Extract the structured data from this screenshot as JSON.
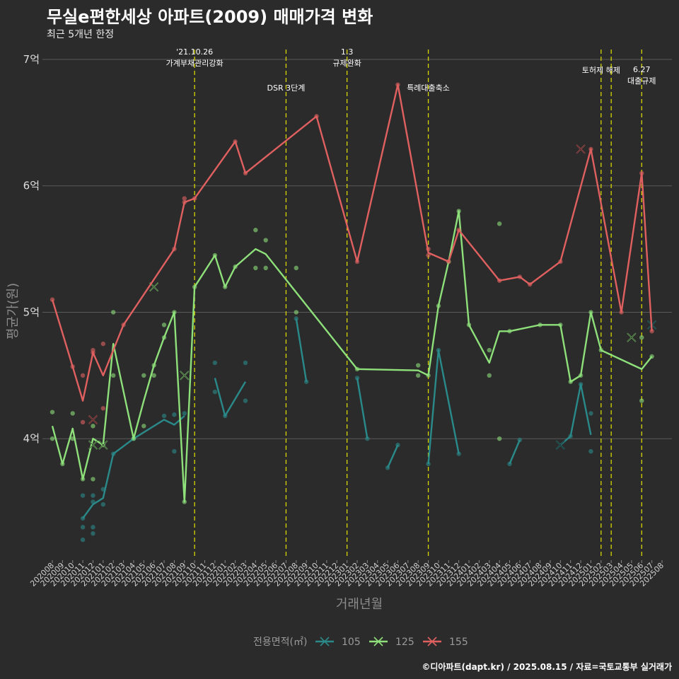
{
  "header": {
    "title": "무실e편한세상 아파트(2009) 매매가격 변화",
    "subtitle": "최근 5개년 한정"
  },
  "caption": "©디아파트(dapt.kr) / 2025.08.15 / 자료=국토교통부 실거래가",
  "colors": {
    "background": "#2b2b2b",
    "grid": "#5a5a5a",
    "vline": "#d6d600",
    "series_105": "#2a8a8a",
    "series_125": "#8ee07a",
    "series_155": "#e06060"
  },
  "chart_data": {
    "type": "line",
    "xlabel": "거래년월",
    "ylabel": "평균가(원)",
    "ylim": [
      3.05,
      7.05
    ],
    "y_ticks": [
      {
        "value": 4,
        "label": "4억"
      },
      {
        "value": 5,
        "label": "5억"
      },
      {
        "value": 6,
        "label": "6억"
      },
      {
        "value": 7,
        "label": "7억"
      }
    ],
    "x_categories": [
      "202008",
      "202009",
      "202010",
      "202011",
      "202012",
      "202101",
      "202102",
      "202103",
      "202104",
      "202105",
      "202106",
      "202107",
      "202108",
      "202109",
      "202110",
      "202111",
      "202112",
      "202201",
      "202202",
      "202203",
      "202204",
      "202205",
      "202206",
      "202207",
      "202208",
      "202209",
      "202210",
      "202211",
      "202212",
      "202301",
      "202302",
      "202303",
      "202304",
      "202305",
      "202306",
      "202307",
      "202308",
      "202309",
      "202310",
      "202311",
      "202312",
      "202401",
      "202402",
      "202403",
      "202404",
      "202405",
      "202406",
      "202407",
      "202408",
      "202409",
      "202410",
      "202411",
      "202412",
      "202501",
      "202502",
      "202503",
      "202504",
      "202505",
      "202506",
      "202507",
      "202508"
    ],
    "legend": {
      "title": "전용면적(㎡)",
      "position": "bottom"
    },
    "series": [
      {
        "name": "105",
        "color": "#2a8a8a",
        "segments": [
          [
            [
              "202011",
              3.37
            ],
            [
              "202012",
              3.48
            ],
            [
              "202101",
              3.53
            ],
            [
              "202102",
              3.88
            ],
            [
              "202104",
              4.0
            ],
            [
              "202107",
              4.15
            ],
            [
              "202108",
              4.11
            ],
            [
              "202109",
              4.18
            ]
          ],
          [
            [
              "202112",
              4.48
            ],
            [
              "202201",
              4.18
            ],
            [
              "202203",
              4.45
            ]
          ],
          [
            [
              "202208",
              4.95
            ],
            [
              "202209",
              4.45
            ]
          ],
          [
            [
              "202302",
              4.48
            ],
            [
              "202303",
              4.0
            ]
          ],
          [
            [
              "202305",
              3.77
            ],
            [
              "202306",
              3.95
            ]
          ],
          [
            [
              "202309",
              3.8
            ],
            [
              "202310",
              4.7
            ],
            [
              "202312",
              3.88
            ]
          ],
          [
            [
              "202405",
              3.8
            ],
            [
              "202406",
              3.99
            ]
          ],
          [
            [
              "202410",
              3.95
            ],
            [
              "202411",
              4.02
            ],
            [
              "202412",
              4.43
            ],
            [
              "202501",
              4.03
            ]
          ]
        ],
        "points": [
          [
            "202011",
            3.37
          ],
          [
            "202011",
            3.3
          ],
          [
            "202011",
            3.55
          ],
          [
            "202011",
            3.2
          ],
          [
            "202012",
            3.55
          ],
          [
            "202012",
            3.25
          ],
          [
            "202012",
            3.3
          ],
          [
            "202012",
            3.5
          ],
          [
            "202101",
            3.48
          ],
          [
            "202101",
            3.6
          ],
          [
            "202102",
            3.88
          ],
          [
            "202104",
            4.0
          ],
          [
            "202107",
            4.18
          ],
          [
            "202108",
            4.19
          ],
          [
            "202108",
            3.9
          ],
          [
            "202109",
            4.2
          ],
          [
            "202112",
            4.6
          ],
          [
            "202112",
            4.37
          ],
          [
            "202201",
            4.18
          ],
          [
            "202203",
            4.6
          ],
          [
            "202203",
            4.3
          ],
          [
            "202208",
            4.95
          ],
          [
            "202209",
            4.45
          ],
          [
            "202302",
            4.48
          ],
          [
            "202303",
            4.0
          ],
          [
            "202305",
            3.77
          ],
          [
            "202306",
            3.95
          ],
          [
            "202309",
            3.8
          ],
          [
            "202310",
            4.7
          ],
          [
            "202312",
            3.88
          ],
          [
            "202405",
            3.8
          ],
          [
            "202406",
            3.99
          ],
          [
            "202411",
            4.02
          ],
          [
            "202412",
            4.43
          ],
          [
            "202501",
            4.2
          ],
          [
            "202501",
            3.9
          ]
        ],
        "cancelled": [
          [
            "202410",
            3.95
          ],
          [
            "202507",
            4.9
          ]
        ]
      },
      {
        "name": "125",
        "color": "#8ee07a",
        "segments": [
          [
            [
              "202008",
              4.1
            ],
            [
              "202009",
              3.8
            ],
            [
              "202010",
              4.08
            ],
            [
              "202011",
              3.68
            ],
            [
              "202012",
              4.0
            ],
            [
              "202101",
              3.95
            ],
            [
              "202102",
              4.75
            ],
            [
              "202104",
              4.0
            ],
            [
              "202105",
              4.3
            ],
            [
              "202106",
              4.58
            ],
            [
              "202107",
              4.8
            ],
            [
              "202108",
              5.0
            ],
            [
              "202109",
              3.5
            ],
            [
              "202110",
              5.2
            ],
            [
              "202112",
              5.45
            ],
            [
              "202201",
              5.2
            ],
            [
              "202202",
              5.36
            ],
            [
              "202204",
              5.5
            ],
            [
              "202205",
              5.46
            ],
            [
              "202302",
              4.55
            ],
            [
              "202308",
              4.54
            ],
            [
              "202309",
              4.5
            ],
            [
              "202310",
              5.05
            ],
            [
              "202311",
              5.4
            ],
            [
              "202312",
              5.8
            ],
            [
              "202401",
              4.9
            ],
            [
              "202403",
              4.6
            ],
            [
              "202404",
              4.85
            ],
            [
              "202405",
              4.85
            ],
            [
              "202408",
              4.9
            ],
            [
              "202410",
              4.9
            ],
            [
              "202411",
              4.45
            ],
            [
              "202412",
              4.5
            ],
            [
              "202501",
              5.0
            ],
            [
              "202502",
              4.7
            ],
            [
              "202506",
              4.55
            ],
            [
              "202507",
              4.65
            ]
          ]
        ],
        "points": [
          [
            "202008",
            4.21
          ],
          [
            "202008",
            4.0
          ],
          [
            "202009",
            3.8
          ],
          [
            "202010",
            4.2
          ],
          [
            "202010",
            4.0
          ],
          [
            "202011",
            3.68
          ],
          [
            "202012",
            3.68
          ],
          [
            "202012",
            4.1
          ],
          [
            "202101",
            3.95
          ],
          [
            "202102",
            5.0
          ],
          [
            "202102",
            4.5
          ],
          [
            "202104",
            4.0
          ],
          [
            "202105",
            4.1
          ],
          [
            "202105",
            4.5
          ],
          [
            "202106",
            4.58
          ],
          [
            "202106",
            4.5
          ],
          [
            "202107",
            4.8
          ],
          [
            "202107",
            4.9
          ],
          [
            "202108",
            5.0
          ],
          [
            "202109",
            3.5
          ],
          [
            "202110",
            5.2
          ],
          [
            "202112",
            5.45
          ],
          [
            "202201",
            5.2
          ],
          [
            "202202",
            5.36
          ],
          [
            "202204",
            5.35
          ],
          [
            "202204",
            5.65
          ],
          [
            "202205",
            5.35
          ],
          [
            "202205",
            5.57
          ],
          [
            "202208",
            5.35
          ],
          [
            "202208",
            5.0
          ],
          [
            "202302",
            4.55
          ],
          [
            "202308",
            4.58
          ],
          [
            "202308",
            4.5
          ],
          [
            "202309",
            4.5
          ],
          [
            "202310",
            5.05
          ],
          [
            "202311",
            5.4
          ],
          [
            "202312",
            5.8
          ],
          [
            "202401",
            4.9
          ],
          [
            "202403",
            4.7
          ],
          [
            "202403",
            4.5
          ],
          [
            "202404",
            5.7
          ],
          [
            "202404",
            4.0
          ],
          [
            "202405",
            4.85
          ],
          [
            "202408",
            4.9
          ],
          [
            "202410",
            4.9
          ],
          [
            "202411",
            4.45
          ],
          [
            "202412",
            4.5
          ],
          [
            "202501",
            5.0
          ],
          [
            "202502",
            4.7
          ],
          [
            "202506",
            4.8
          ],
          [
            "202506",
            4.3
          ],
          [
            "202507",
            4.65
          ]
        ],
        "cancelled": [
          [
            "202012",
            3.95
          ],
          [
            "202101",
            3.95
          ],
          [
            "202106",
            5.2
          ],
          [
            "202109",
            4.5
          ],
          [
            "202505",
            4.8
          ]
        ]
      },
      {
        "name": "155",
        "color": "#e06060",
        "segments": [
          [
            [
              "202008",
              5.1
            ],
            [
              "202010",
              4.57
            ],
            [
              "202011",
              4.3
            ],
            [
              "202012",
              4.68
            ],
            [
              "202101",
              4.5
            ],
            [
              "202103",
              4.9
            ],
            [
              "202108",
              5.5
            ],
            [
              "202109",
              5.87
            ],
            [
              "202110",
              5.9
            ],
            [
              "202202",
              6.35
            ],
            [
              "202203",
              6.1
            ],
            [
              "202210",
              6.55
            ],
            [
              "202302",
              5.4
            ],
            [
              "202306",
              6.8
            ],
            [
              "202309",
              5.47
            ],
            [
              "202311",
              5.4
            ],
            [
              "202312",
              5.65
            ],
            [
              "202404",
              5.25
            ],
            [
              "202406",
              5.28
            ],
            [
              "202407",
              5.22
            ],
            [
              "202410",
              5.4
            ],
            [
              "202501",
              6.29
            ],
            [
              "202504",
              5.0
            ],
            [
              "202506",
              6.1
            ],
            [
              "202507",
              4.85
            ]
          ]
        ],
        "points": [
          [
            "202008",
            5.1
          ],
          [
            "202010",
            4.57
          ],
          [
            "202011",
            4.5
          ],
          [
            "202011",
            4.13
          ],
          [
            "202012",
            4.7
          ],
          [
            "202012",
            4.68
          ],
          [
            "202101",
            4.75
          ],
          [
            "202101",
            4.24
          ],
          [
            "202103",
            4.9
          ],
          [
            "202108",
            5.5
          ],
          [
            "202109",
            5.9
          ],
          [
            "202109",
            5.87
          ],
          [
            "202110",
            5.9
          ],
          [
            "202202",
            6.35
          ],
          [
            "202203",
            6.1
          ],
          [
            "202210",
            6.55
          ],
          [
            "202302",
            5.4
          ],
          [
            "202306",
            6.8
          ],
          [
            "202309",
            5.5
          ],
          [
            "202309",
            5.45
          ],
          [
            "202311",
            5.4
          ],
          [
            "202312",
            5.65
          ],
          [
            "202404",
            5.25
          ],
          [
            "202406",
            5.28
          ],
          [
            "202407",
            5.22
          ],
          [
            "202410",
            5.4
          ],
          [
            "202501",
            6.29
          ],
          [
            "202504",
            5.0
          ],
          [
            "202506",
            6.1
          ],
          [
            "202507",
            4.85
          ]
        ],
        "cancelled": [
          [
            "202012",
            4.15
          ],
          [
            "202412",
            6.29
          ]
        ]
      }
    ],
    "vlines": [
      {
        "x": "202110",
        "label": "'21.10.26\n가계부채관리강화"
      },
      {
        "x": "202207",
        "label": "DSR 3단계"
      },
      {
        "x": "202301",
        "label": "1.3\n규제완화"
      },
      {
        "x": "202309",
        "label": "특례대출축소"
      },
      {
        "x": "202502",
        "label": "토허제 해제"
      },
      {
        "x": "202503",
        "label": ""
      },
      {
        "x": "202506",
        "label": "6.27\n대출규제"
      }
    ]
  }
}
